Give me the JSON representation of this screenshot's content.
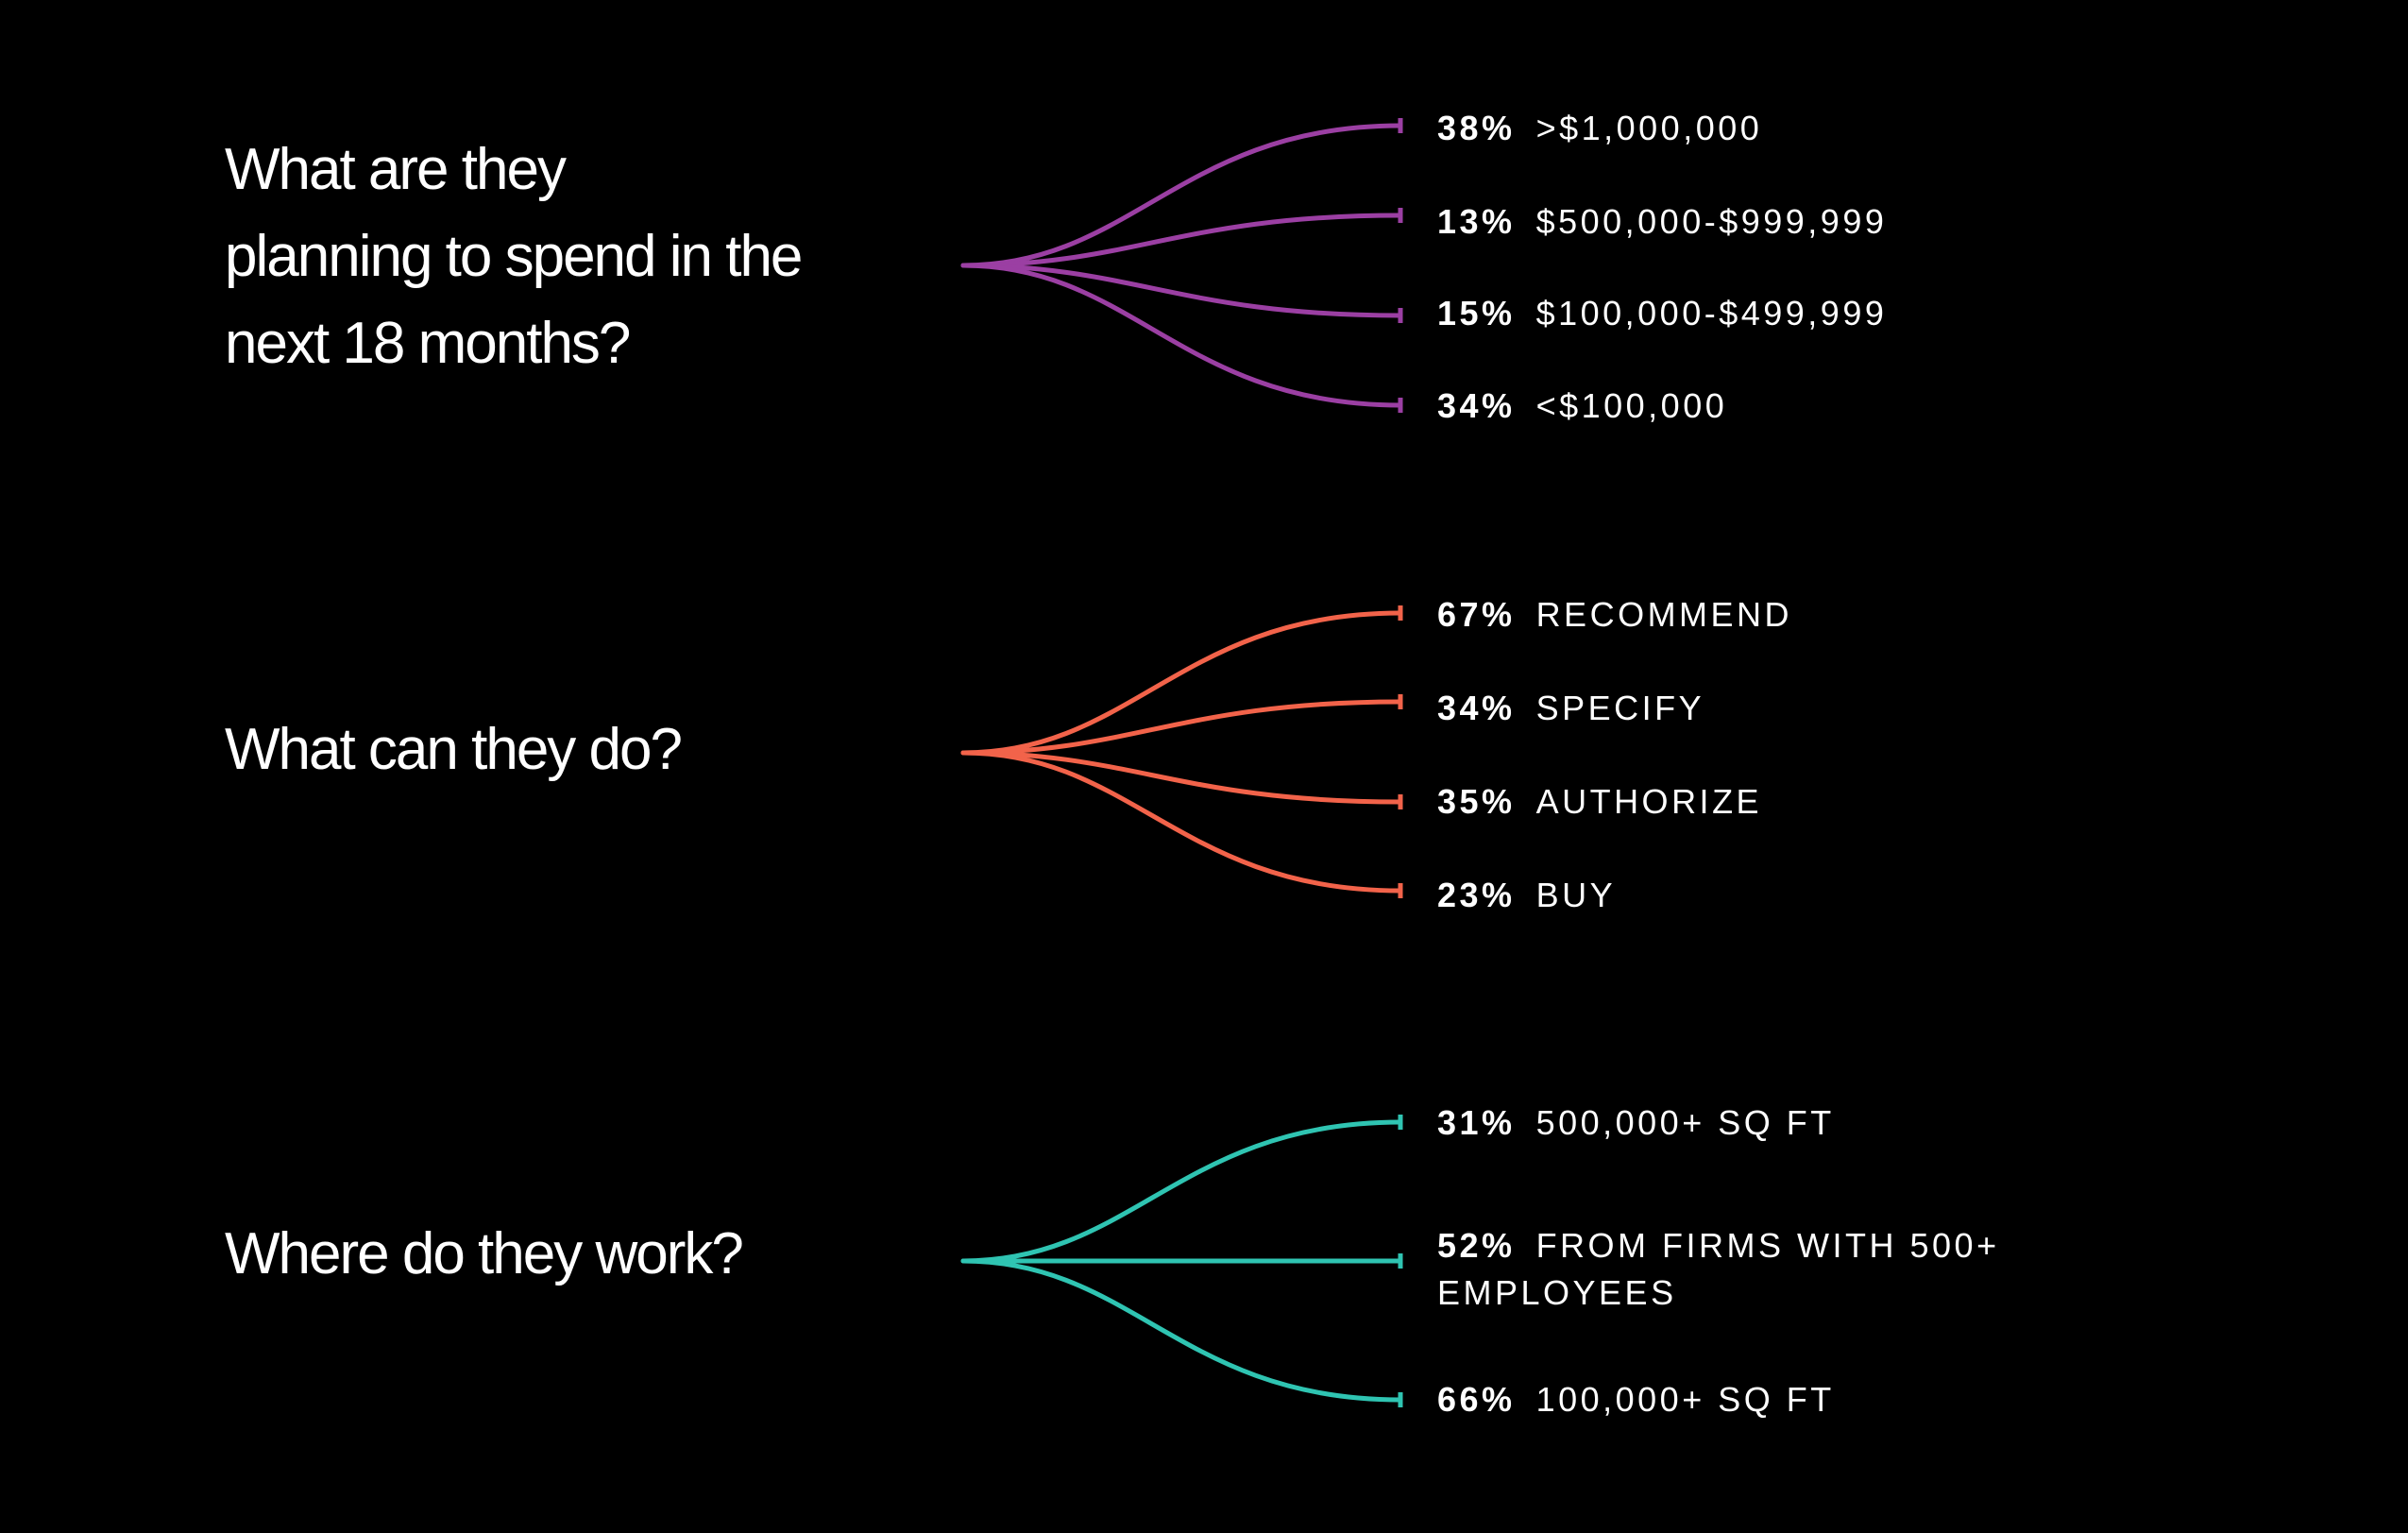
{
  "colors": {
    "background": "#000000",
    "text": "#ffffff",
    "spend": "#9b3fa3",
    "role": "#f2634a",
    "work": "#2fc4b2"
  },
  "groups": [
    {
      "question": "What are they planning to spend in the next 18 months?",
      "question_lines": [
        "What are they",
        "planning to spend in the",
        "next 18 months?"
      ],
      "color": "#9b3fa3",
      "answers": [
        {
          "percent": "38%",
          "label": ">$1,000,000",
          "value": 38
        },
        {
          "percent": "13%",
          "label": "$500,000-$999,999",
          "value": 13
        },
        {
          "percent": "15%",
          "label": "$100,000-$499,999",
          "value": 15
        },
        {
          "percent": "34%",
          "label": "<$100,000",
          "value": 34
        }
      ]
    },
    {
      "question": "What can they do?",
      "question_lines": [
        "What can they do?"
      ],
      "color": "#f2634a",
      "answers": [
        {
          "percent": "67%",
          "label": "RECOMMEND",
          "value": 67
        },
        {
          "percent": "34%",
          "label": "SPECIFY",
          "value": 34
        },
        {
          "percent": "35%",
          "label": "AUTHORIZE",
          "value": 35
        },
        {
          "percent": "23%",
          "label": "BUY",
          "value": 23
        }
      ]
    },
    {
      "question": "Where do they work?",
      "question_lines": [
        "Where do they work?"
      ],
      "color": "#2fc4b2",
      "answers": [
        {
          "percent": "31%",
          "label": "500,000+ SQ FT",
          "value": 31
        },
        {
          "percent": "52%",
          "label": "FROM FIRMS WITH 500+ EMPLOYEES",
          "value": 52
        },
        {
          "percent": "66%",
          "label": "100,000+ SQ FT",
          "value": 66
        }
      ]
    }
  ]
}
